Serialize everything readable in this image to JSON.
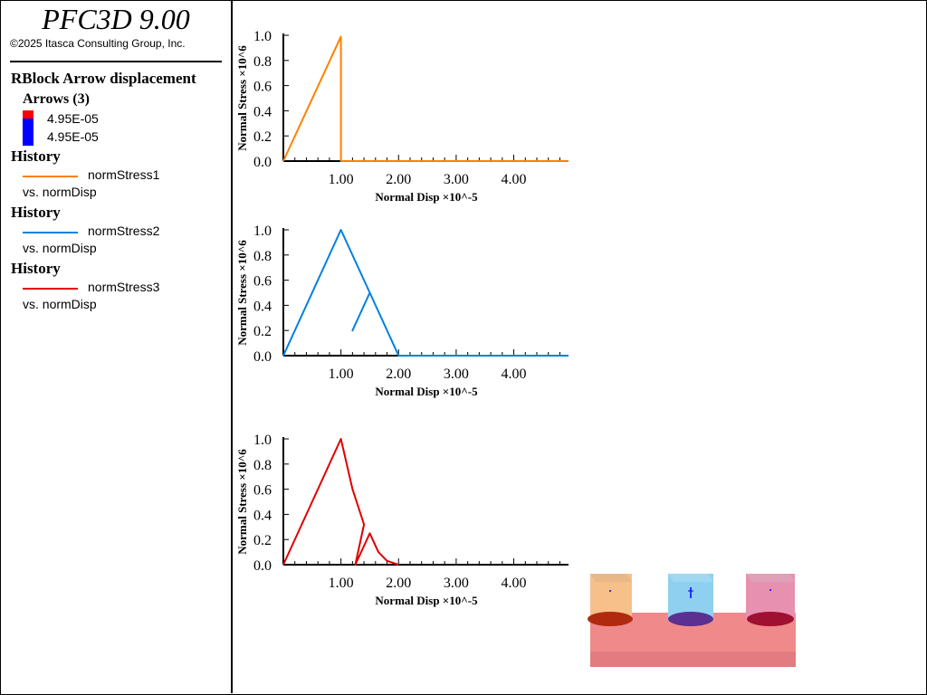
{
  "app": {
    "title": "PFC3D 9.00",
    "copyright": "©2025 Itasca Consulting Group, Inc."
  },
  "legend": {
    "plot_item": "RBlock Arrow displacement",
    "arrows": {
      "heading": "Arrows (3)",
      "max": "4.95E-05",
      "min": "4.95E-05",
      "colors": [
        "#ff0000",
        "#0000ff"
      ]
    },
    "histories": [
      {
        "heading": "History",
        "name": "normStress1",
        "vs": "vs. normDisp",
        "color": "#ff8000"
      },
      {
        "heading": "History",
        "name": "normStress2",
        "vs": "vs. normDisp",
        "color": "#0080e0"
      },
      {
        "heading": "History",
        "name": "normStress3",
        "vs": "vs. normDisp",
        "color": "#e00000"
      }
    ]
  },
  "chart_data": [
    {
      "type": "line",
      "title": "",
      "xlabel": "Normal Disp ×10^-5",
      "ylabel": "Normal Stress ×10^6",
      "xlim": [
        0,
        4.95
      ],
      "ylim": [
        0,
        1.0
      ],
      "xticks": [
        "1.00",
        "2.00",
        "3.00",
        "4.00"
      ],
      "yticks": [
        "0.0",
        "0.2",
        "0.4",
        "0.6",
        "0.8",
        "1.0"
      ],
      "series": [
        {
          "name": "normStress1",
          "color": "#ff8000",
          "x": [
            0,
            1.0,
            1.0,
            1.0,
            1.0,
            4.95
          ],
          "y": [
            0,
            0.99,
            0.75,
            0.75,
            0,
            0
          ]
        }
      ]
    },
    {
      "type": "line",
      "title": "",
      "xlabel": "Normal Disp ×10^-5",
      "ylabel": "Normal Stress ×10^6",
      "xlim": [
        0,
        4.95
      ],
      "ylim": [
        0,
        1.0
      ],
      "xticks": [
        "1.00",
        "2.00",
        "3.00",
        "4.00"
      ],
      "yticks": [
        "0.0",
        "0.2",
        "0.4",
        "0.6",
        "0.8",
        "1.0"
      ],
      "series": [
        {
          "name": "normStress2",
          "color": "#0080e0",
          "x": [
            0,
            1.0,
            1.5,
            1.2,
            1.5,
            2.0,
            4.95
          ],
          "y": [
            0,
            1.0,
            0.5,
            0.2,
            0.5,
            0,
            0
          ]
        }
      ]
    },
    {
      "type": "line",
      "title": "",
      "xlabel": "Normal Disp ×10^-5",
      "ylabel": "Normal Stress ×10^6",
      "xlim": [
        0,
        4.95
      ],
      "ylim": [
        0,
        1.0
      ],
      "xticks": [
        "1.00",
        "2.00",
        "3.00",
        "4.00"
      ],
      "yticks": [
        "0.0",
        "0.2",
        "0.4",
        "0.6",
        "0.8",
        "1.0"
      ],
      "series": [
        {
          "name": "normStress3",
          "color": "#e00000",
          "x": [
            0,
            1.0,
            1.2,
            1.4,
            1.25,
            1.5,
            1.65,
            1.8,
            2.0
          ],
          "y": [
            0,
            1.0,
            0.6,
            0.32,
            0,
            0.25,
            0.1,
            0.03,
            0
          ]
        }
      ]
    }
  ],
  "viewport": {
    "base_color": "#f08a8a",
    "blocks": [
      {
        "color": "#f5c08a",
        "disk": "#b02a10"
      },
      {
        "color": "#8fd0f0",
        "disk": "#5a3090"
      },
      {
        "color": "#e890b0",
        "disk": "#a01030"
      }
    ]
  }
}
